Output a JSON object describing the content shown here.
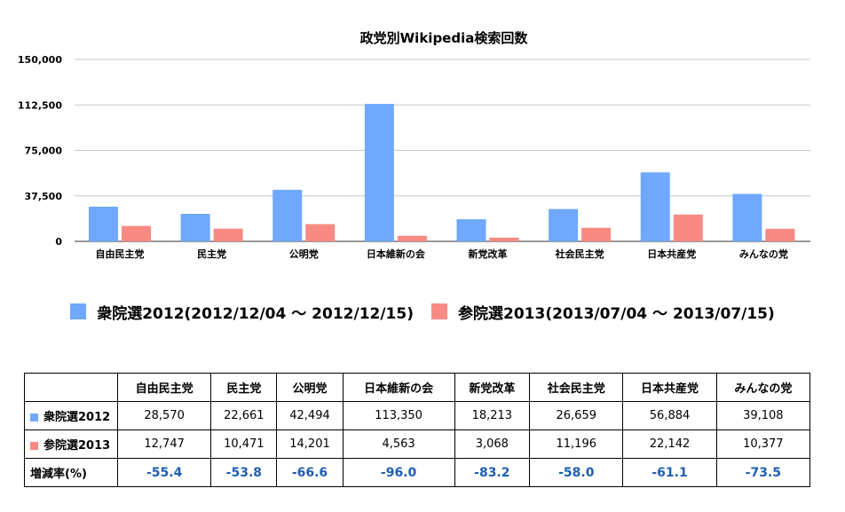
{
  "chart_data": {
    "type": "bar",
    "title": "政党別Wikipedia検索回数",
    "categories": [
      "自由民主党",
      "民主党",
      "公明党",
      "日本維新の会",
      "新党改革",
      "社会民主党",
      "日本共産党",
      "みんなの党"
    ],
    "series": [
      {
        "name": "衆院選2012(2012/12/04 〜 2012/12/15)",
        "color": "#6fa8fc",
        "values": [
          28570,
          22661,
          42494,
          113350,
          18213,
          26659,
          56884,
          39108
        ]
      },
      {
        "name": "参院選2013(2013/07/04 〜 2013/07/15)",
        "color": "#f98a83",
        "values": [
          12747,
          10471,
          14201,
          4563,
          3068,
          11196,
          22142,
          10377
        ]
      }
    ],
    "ylim": [
      0,
      150000
    ],
    "yticks": [
      "0",
      "37,500",
      "75,000",
      "112,500",
      "150,000"
    ],
    "grid": true,
    "legend_position": "bottom"
  },
  "table": {
    "header": [
      "",
      "自由民主党",
      "民主党",
      "公明党",
      "日本維新の会",
      "新党改革",
      "社会民主党",
      "日本共産党",
      "みんなの党"
    ],
    "rows": [
      {
        "label": "衆院選2012",
        "color": "#6fa8fc",
        "cells": [
          "28,570",
          "22,661",
          "42,494",
          "113,350",
          "18,213",
          "26,659",
          "56,884",
          "39,108"
        ]
      },
      {
        "label": "参院選2013",
        "color": "#f98a83",
        "cells": [
          "12,747",
          "10,471",
          "14,201",
          "4,563",
          "3,068",
          "11,196",
          "22,142",
          "10,377"
        ]
      },
      {
        "label": "増減率(%)",
        "color": "",
        "cells": [
          "-55.4",
          "-53.8",
          "-66.6",
          "-96.0",
          "-83.2",
          "-58.0",
          "-61.1",
          "-73.5"
        ]
      }
    ]
  }
}
